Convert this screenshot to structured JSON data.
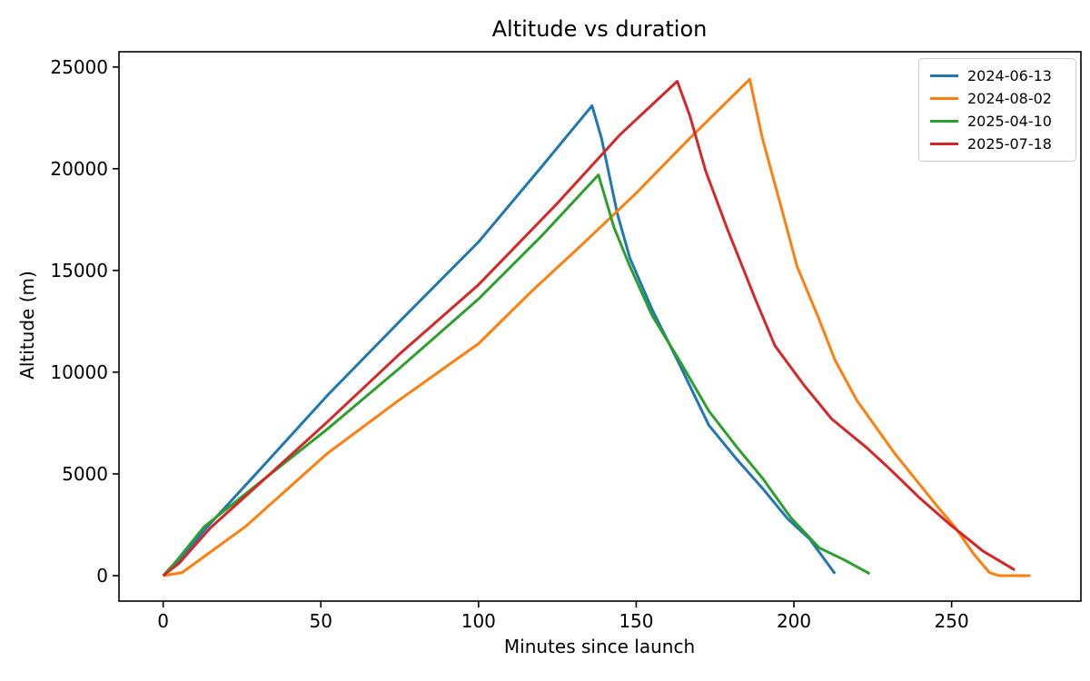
{
  "figure": {
    "background": "#ffffff",
    "title": "Altitude vs duration"
  },
  "chart_data": {
    "type": "line",
    "title": "Altitude vs duration",
    "xlabel": "Minutes since launch",
    "ylabel": "Altitude (m)",
    "xlim": [
      -14,
      291
    ],
    "ylim": [
      -1250,
      25750
    ],
    "x_ticks": [
      0,
      50,
      100,
      150,
      200,
      250
    ],
    "y_ticks": [
      0,
      5000,
      10000,
      15000,
      20000,
      25000
    ],
    "grid": false,
    "legend_position": "upper right",
    "frame_color": "#000000",
    "series": [
      {
        "name": "2024-06-13",
        "color": "#1f77b4",
        "points": [
          [
            0,
            0
          ],
          [
            4,
            550
          ],
          [
            14,
            2400
          ],
          [
            30,
            5100
          ],
          [
            52,
            8850
          ],
          [
            75,
            12500
          ],
          [
            100,
            16400
          ],
          [
            120,
            20100
          ],
          [
            136,
            23100
          ],
          [
            139,
            21500
          ],
          [
            144,
            17800
          ],
          [
            148,
            15600
          ],
          [
            155,
            13100
          ],
          [
            164,
            10300
          ],
          [
            173,
            7400
          ],
          [
            182,
            5700
          ],
          [
            190,
            4300
          ],
          [
            198,
            2800
          ],
          [
            205,
            1800
          ],
          [
            213,
            100
          ]
        ]
      },
      {
        "name": "2024-08-02",
        "color": "#ff7f0e",
        "points": [
          [
            0,
            0
          ],
          [
            6,
            150
          ],
          [
            26,
            2400
          ],
          [
            52,
            6000
          ],
          [
            75,
            8650
          ],
          [
            100,
            11400
          ],
          [
            117,
            14000
          ],
          [
            133,
            16300
          ],
          [
            150,
            18800
          ],
          [
            167,
            21500
          ],
          [
            186,
            24400
          ],
          [
            190,
            21500
          ],
          [
            196,
            18100
          ],
          [
            201,
            15200
          ],
          [
            208,
            12600
          ],
          [
            213,
            10600
          ],
          [
            220,
            8600
          ],
          [
            232,
            6000
          ],
          [
            246,
            3300
          ],
          [
            251,
            2400
          ],
          [
            257,
            1070
          ],
          [
            262,
            150
          ],
          [
            265,
            0
          ],
          [
            275,
            0
          ]
        ]
      },
      {
        "name": "2025-04-10",
        "color": "#2ca02c",
        "points": [
          [
            0,
            0
          ],
          [
            4,
            680
          ],
          [
            13,
            2400
          ],
          [
            30,
            4500
          ],
          [
            52,
            7200
          ],
          [
            75,
            10200
          ],
          [
            100,
            13600
          ],
          [
            120,
            16700
          ],
          [
            138,
            19700
          ],
          [
            143,
            17100
          ],
          [
            148,
            15200
          ],
          [
            155,
            12800
          ],
          [
            164,
            10500
          ],
          [
            173,
            8100
          ],
          [
            182,
            6300
          ],
          [
            190,
            4800
          ],
          [
            199,
            2850
          ],
          [
            208,
            1370
          ],
          [
            216,
            770
          ],
          [
            224,
            100
          ]
        ]
      },
      {
        "name": "2025-07-18",
        "color": "#d62728",
        "points": [
          [
            0,
            0
          ],
          [
            5,
            600
          ],
          [
            15,
            2350
          ],
          [
            30,
            4450
          ],
          [
            52,
            7550
          ],
          [
            75,
            10900
          ],
          [
            100,
            14300
          ],
          [
            125,
            18300
          ],
          [
            145,
            21700
          ],
          [
            163,
            24300
          ],
          [
            167,
            22600
          ],
          [
            172,
            19900
          ],
          [
            179,
            17000
          ],
          [
            188,
            13500
          ],
          [
            194,
            11300
          ],
          [
            203,
            9400
          ],
          [
            212,
            7700
          ],
          [
            223,
            6300
          ],
          [
            230,
            5300
          ],
          [
            240,
            3800
          ],
          [
            250,
            2450
          ],
          [
            260,
            1200
          ],
          [
            270,
            280
          ]
        ]
      }
    ]
  }
}
